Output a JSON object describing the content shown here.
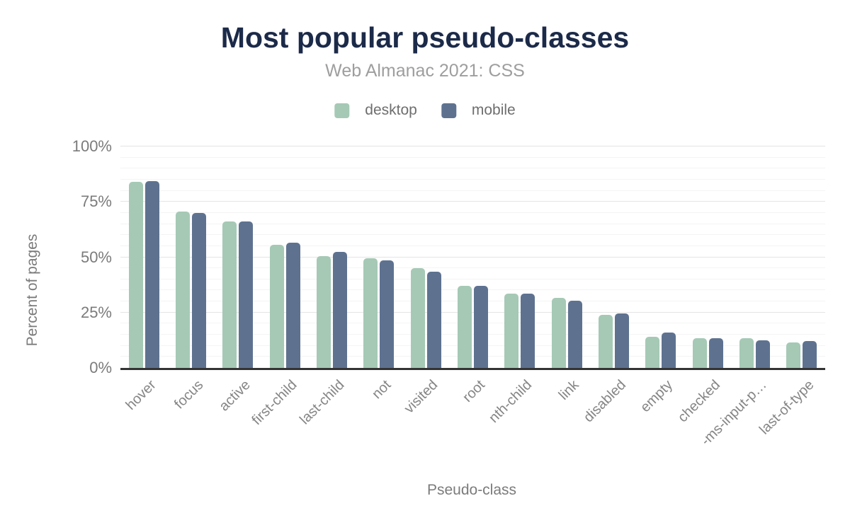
{
  "header": {
    "title": "Most popular pseudo-classes",
    "subtitle": "Web Almanac 2021: CSS"
  },
  "legend": [
    {
      "label": "desktop",
      "color": "#a5c9b5"
    },
    {
      "label": "mobile",
      "color": "#5e7290"
    }
  ],
  "colors": {
    "title": "#1c2a49",
    "subtitle": "#9e9e9e",
    "desktop_bar": "#a5c9b5",
    "mobile_bar": "#5e7290",
    "axis_line": "#333333",
    "major_gridline": "#e4e4e4",
    "minor_gridline": "#f4f4f4",
    "tick_text": "#7b7b7b"
  },
  "chart_data": {
    "type": "bar",
    "title": "Most popular pseudo-classes",
    "subtitle": "Web Almanac 2021: CSS",
    "xlabel": "Pseudo-class",
    "ylabel": "Percent of pages",
    "ylim": [
      0,
      100
    ],
    "yticks": [
      0,
      25,
      50,
      75,
      100
    ],
    "ytick_labels": [
      "0%",
      "25%",
      "50%",
      "75%",
      "100%"
    ],
    "minor_grid_step": 5,
    "grid": true,
    "legend_position": "top",
    "categories": [
      "hover",
      "focus",
      "active",
      "first-child",
      "last-child",
      "not",
      "visited",
      "root",
      "nth-child",
      "link",
      "disabled",
      "empty",
      "checked",
      "-ms-input-p…",
      "last-of-type"
    ],
    "series": [
      {
        "name": "desktop",
        "color": "#a5c9b5",
        "values": [
          84,
          70.5,
          66,
          55.5,
          50.5,
          49.5,
          45,
          37,
          33.5,
          31.5,
          24,
          14,
          13.5,
          13.5,
          11.5
        ]
      },
      {
        "name": "mobile",
        "color": "#5e7290",
        "values": [
          84.5,
          70,
          66,
          56.5,
          52.5,
          48.5,
          43.5,
          37,
          33.5,
          30.5,
          24.5,
          16,
          13.5,
          12.5,
          12
        ]
      }
    ]
  }
}
